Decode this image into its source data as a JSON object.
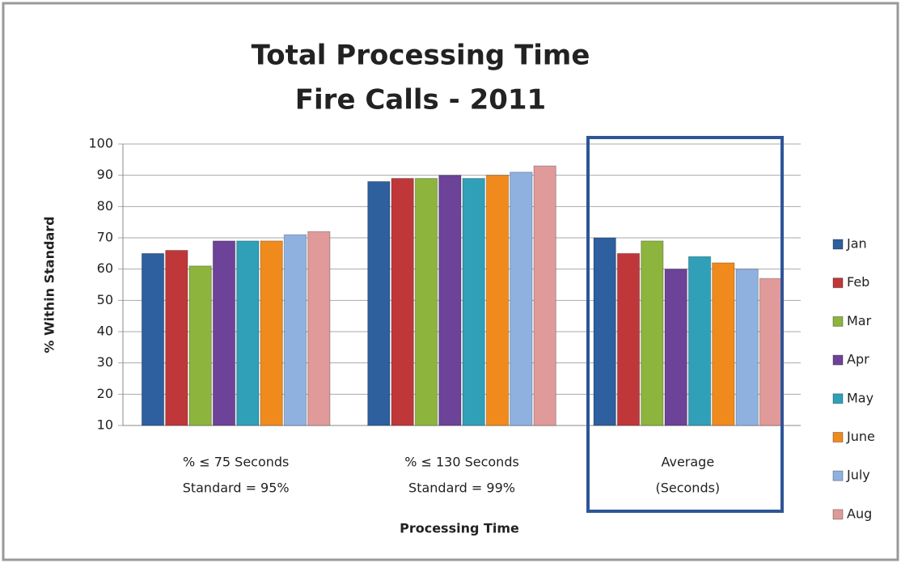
{
  "chart_data": {
    "type": "bar",
    "title": [
      "Total Processing Time",
      "Fire Calls - 2011"
    ],
    "y_label": "% Within Standard",
    "x_label": "Processing Time",
    "categories": [
      [
        "% ≤ 75 Seconds",
        "Standard = 95%"
      ],
      [
        "% ≤ 130 Seconds",
        "Standard = 99%"
      ],
      [
        "Average",
        "(Seconds)"
      ]
    ],
    "series": [
      {
        "name": "Jan",
        "color": "#2e5f9e",
        "values": [
          65,
          88,
          70
        ]
      },
      {
        "name": "Feb",
        "color": "#c0373a",
        "values": [
          66,
          89,
          65
        ]
      },
      {
        "name": "Mar",
        "color": "#8db43c",
        "values": [
          61,
          89,
          69
        ]
      },
      {
        "name": "Apr",
        "color": "#6c4398",
        "values": [
          69,
          90,
          60
        ]
      },
      {
        "name": "May",
        "color": "#2fa0b8",
        "values": [
          69,
          89,
          64
        ]
      },
      {
        "name": "June",
        "color": "#f18a1d",
        "values": [
          69,
          90,
          62
        ]
      },
      {
        "name": "July",
        "color": "#8fb1e0",
        "values": [
          71,
          91,
          60
        ]
      },
      {
        "name": "Aug",
        "color": "#e09a9a",
        "values": [
          72,
          93,
          57
        ]
      }
    ],
    "ylim": [
      10,
      100
    ],
    "yticks": [
      10,
      20,
      30,
      40,
      50,
      60,
      70,
      80,
      90,
      100
    ],
    "grid": true,
    "legend": "right"
  }
}
